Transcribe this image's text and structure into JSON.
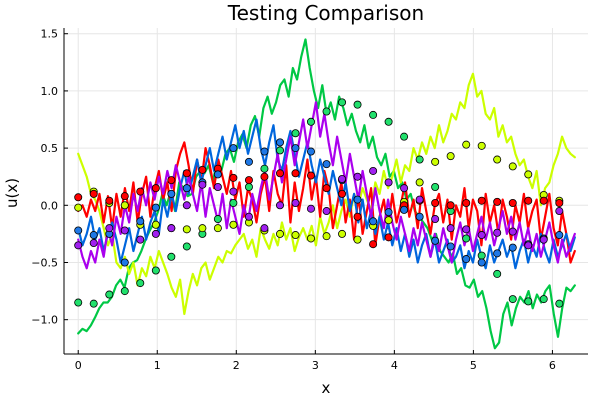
{
  "chart_data": {
    "type": "line",
    "title": "Testing Comparison",
    "xlabel": "x",
    "ylabel": "u(x)",
    "xlim": [
      -0.18,
      6.45
    ],
    "ylim": [
      -1.3,
      1.55
    ],
    "xticks": [
      0,
      1,
      2,
      3,
      4,
      5,
      6
    ],
    "xtick_labels": [
      "0",
      "1",
      "2",
      "3",
      "4",
      "5",
      "6"
    ],
    "yticks": [
      -1.0,
      -0.5,
      0.0,
      0.5,
      1.0,
      1.5
    ],
    "ytick_labels": [
      "−1.0",
      "−0.5",
      "0.0",
      "0.5",
      "1.0",
      "1.5"
    ],
    "grid": true,
    "legend": "none",
    "line_x_range": [
      0,
      6.2832
    ],
    "marker_x": [
      0.0,
      0.196,
      0.393,
      0.589,
      0.785,
      0.982,
      1.178,
      1.374,
      1.571,
      1.767,
      1.963,
      2.16,
      2.356,
      2.553,
      2.749,
      2.945,
      3.142,
      3.338,
      3.534,
      3.731,
      3.927,
      4.123,
      4.32,
      4.516,
      4.712,
      4.909,
      5.105,
      5.301,
      5.498,
      5.694,
      5.89,
      6.087
    ],
    "series": [
      {
        "name": "green",
        "color": "#00c845",
        "marker_color": "#21e06c",
        "line_values": [
          -1.12,
          -1.08,
          -1.1,
          -1.05,
          -0.98,
          -0.9,
          -0.85,
          -0.85,
          -0.8,
          -0.7,
          -0.65,
          -0.72,
          -0.55,
          -0.5,
          -0.48,
          -0.4,
          -0.3,
          -0.22,
          -0.15,
          -0.05,
          0.1,
          0.0,
          0.12,
          -0.05,
          0.2,
          0.15,
          0.08,
          0.1,
          0.25,
          0.3,
          0.28,
          0.35,
          0.2,
          0.4,
          0.3,
          0.45,
          0.5,
          0.38,
          0.55,
          0.62,
          0.5,
          0.7,
          0.78,
          0.6,
          0.85,
          0.95,
          0.8,
          0.9,
          1.05,
          1.1,
          0.95,
          1.2,
          1.1,
          1.3,
          1.45,
          1.2,
          1.0,
          0.85,
          1.05,
          0.8,
          0.9,
          0.75,
          0.95,
          0.85,
          0.7,
          0.8,
          0.65,
          0.55,
          0.7,
          0.5,
          0.6,
          0.42,
          0.35,
          0.45,
          0.25,
          0.3,
          0.15,
          0.2,
          0.05,
          0.1,
          -0.05,
          -0.1,
          -0.15,
          -0.2,
          -0.3,
          -0.25,
          -0.4,
          -0.45,
          -0.5,
          -0.42,
          -0.6,
          -0.55,
          -0.7,
          -0.72,
          -0.65,
          -0.8,
          -0.75,
          -0.9,
          -1.1,
          -1.25,
          -1.2,
          -0.95,
          -0.85,
          -1.05,
          -0.9,
          -0.8,
          -0.85,
          -0.75,
          -0.9,
          -0.78,
          -0.85,
          -0.75,
          -0.7,
          -0.95,
          -1.15,
          -0.9,
          -0.72,
          -0.75,
          -0.7
        ],
        "marker_values": [
          -0.85,
          -0.86,
          -0.78,
          -0.75,
          -0.68,
          -0.57,
          -0.45,
          -0.36,
          -0.25,
          -0.12,
          0.02,
          0.16,
          0.32,
          0.48,
          0.63,
          0.73,
          0.82,
          0.9,
          0.88,
          0.79,
          0.73,
          0.6,
          0.4,
          0.16,
          -0.05,
          -0.29,
          -0.44,
          -0.6,
          -0.82,
          -0.84,
          -0.82,
          -0.86
        ]
      },
      {
        "name": "yellow",
        "color": "#ccff00",
        "marker_color": "#ccff00",
        "line_values": [
          0.45,
          0.35,
          0.25,
          0.1,
          0.05,
          -0.05,
          -0.2,
          -0.35,
          -0.25,
          -0.5,
          -0.55,
          -0.45,
          -0.6,
          -0.5,
          -0.7,
          -0.55,
          -0.62,
          -0.45,
          -0.55,
          -0.4,
          -0.5,
          -0.6,
          -0.72,
          -0.8,
          -0.65,
          -0.95,
          -0.75,
          -0.6,
          -0.7,
          -0.55,
          -0.5,
          -0.65,
          -0.55,
          -0.45,
          -0.5,
          -0.4,
          -0.42,
          -0.35,
          -0.3,
          -0.25,
          -0.38,
          -0.3,
          -0.45,
          -0.2,
          -0.3,
          -0.38,
          -0.25,
          -0.35,
          -0.15,
          -0.3,
          -0.2,
          -0.4,
          -0.28,
          -0.2,
          -0.3,
          -0.18,
          -0.35,
          -0.1,
          -0.25,
          -0.15,
          0.0,
          -0.2,
          -0.05,
          0.05,
          -0.1,
          0.1,
          0.0,
          0.15,
          0.05,
          -0.05,
          0.2,
          0.1,
          0.3,
          0.15,
          0.25,
          0.4,
          0.2,
          0.35,
          0.3,
          0.5,
          0.4,
          0.55,
          0.45,
          0.6,
          0.5,
          0.7,
          0.55,
          0.65,
          0.8,
          0.75,
          0.9,
          0.85,
          1.05,
          1.15,
          0.95,
          1.0,
          0.8,
          0.75,
          0.85,
          0.6,
          0.7,
          0.55,
          0.6,
          0.45,
          0.35,
          0.4,
          0.25,
          0.15,
          0.3,
          0.0,
          0.15,
          0.2,
          0.35,
          0.45,
          0.6,
          0.5,
          0.45,
          0.42
        ],
        "marker_values": [
          -0.02,
          0.12,
          0.02,
          0.0,
          -0.17,
          -0.17,
          -0.2,
          -0.21,
          -0.2,
          -0.2,
          -0.17,
          -0.15,
          -0.22,
          -0.25,
          -0.26,
          -0.29,
          -0.27,
          -0.25,
          -0.3,
          -0.18,
          -0.13,
          0.03,
          0.2,
          0.38,
          0.43,
          0.53,
          0.52,
          0.4,
          0.34,
          0.27,
          0.09,
          0.04
        ]
      },
      {
        "name": "red",
        "color": "#ff0000",
        "marker_color": "#ff0000",
        "line_values": [
          -0.05,
          0.0,
          -0.1,
          0.05,
          -0.05,
          0.1,
          -0.15,
          0.08,
          -0.2,
          0.1,
          -0.1,
          0.15,
          -0.05,
          0.2,
          -0.15,
          0.1,
          0.25,
          -0.1,
          0.15,
          0.3,
          0.05,
          0.2,
          -0.05,
          0.3,
          0.45,
          0.55,
          0.35,
          0.1,
          0.4,
          0.2,
          0.5,
          0.35,
          0.15,
          0.4,
          0.25,
          0.1,
          0.3,
          0.05,
          0.2,
          -0.1,
          0.15,
          0.05,
          -0.15,
          0.1,
          0.25,
          -0.05,
          0.3,
          0.1,
          0.0,
          0.35,
          -0.15,
          0.2,
          -0.05,
          0.15,
          0.4,
          0.05,
          0.25,
          -0.1,
          0.3,
          0.15,
          -0.2,
          0.0,
          0.2,
          -0.15,
          0.05,
          -0.3,
          0.1,
          -0.25,
          -0.05,
          0.15,
          -0.35,
          -0.1,
          0.05,
          -0.2,
          0.1,
          -0.15,
          0.0,
          0.2,
          -0.1,
          0.05,
          -0.2,
          0.15,
          -0.05,
          -0.25,
          0.0,
          0.1,
          -0.15,
          0.05,
          -0.3,
          0.0,
          -0.1,
          0.15,
          -0.2,
          0.05,
          -0.05,
          -0.35,
          0.1,
          -0.15,
          0.0,
          -0.25,
          0.05,
          -0.1,
          -0.3,
          0.0,
          -0.15,
          0.1,
          -0.2,
          -0.05,
          0.05,
          -0.3,
          -0.1,
          0.1,
          -0.2,
          -0.35,
          -0.05,
          -0.25,
          -0.5,
          -0.4
        ],
        "marker_values": [
          0.07,
          0.1,
          0.04,
          0.08,
          0.12,
          0.15,
          0.22,
          0.28,
          0.31,
          0.32,
          0.24,
          0.22,
          0.25,
          0.28,
          0.28,
          0.26,
          0.15,
          0.1,
          -0.1,
          -0.34,
          -0.28,
          0.0,
          0.04,
          0.02,
          0.0,
          0.02,
          0.04,
          0.03,
          0.02,
          0.04,
          0.04,
          0.02
        ]
      },
      {
        "name": "blue",
        "color": "#0066dd",
        "marker_color": "#1f78e6",
        "line_values": [
          -0.2,
          -0.35,
          -0.25,
          -0.1,
          -0.3,
          -0.2,
          -0.4,
          -0.25,
          -0.15,
          -0.3,
          -0.5,
          -0.35,
          -0.2,
          -0.4,
          -0.25,
          -0.1,
          -0.3,
          -0.15,
          -0.05,
          -0.25,
          0.05,
          -0.1,
          0.1,
          -0.05,
          0.15,
          0.3,
          0.1,
          0.25,
          0.4,
          0.2,
          0.35,
          0.5,
          0.3,
          0.45,
          0.6,
          0.4,
          0.55,
          0.7,
          0.5,
          0.65,
          0.45,
          0.6,
          0.75,
          0.5,
          0.35,
          0.55,
          0.7,
          0.4,
          0.3,
          0.5,
          0.65,
          0.45,
          0.25,
          0.4,
          0.55,
          0.35,
          0.2,
          0.4,
          0.25,
          0.1,
          0.3,
          0.15,
          0.0,
          0.2,
          -0.05,
          0.1,
          -0.15,
          0.05,
          -0.2,
          -0.05,
          -0.25,
          -0.1,
          -0.3,
          -0.15,
          -0.35,
          -0.2,
          -0.4,
          -0.25,
          -0.45,
          -0.3,
          -0.5,
          -0.35,
          -0.25,
          -0.45,
          -0.3,
          -0.5,
          -0.4,
          -0.3,
          -0.5,
          -0.45,
          -0.35,
          -0.55,
          -0.4,
          -0.5,
          -0.3,
          -0.45,
          -0.55,
          -0.35,
          -0.5,
          -0.4,
          -0.3,
          -0.45,
          -0.35,
          -0.55,
          -0.4,
          -0.3,
          -0.5,
          -0.35,
          -0.45,
          -0.25,
          -0.4,
          -0.5,
          -0.3,
          -0.45,
          -0.35,
          -0.25,
          -0.4,
          -0.28
        ],
        "marker_values": [
          -0.22,
          -0.26,
          -0.25,
          -0.5,
          -0.14,
          -0.02,
          0.1,
          0.15,
          0.2,
          0.27,
          0.5,
          0.38,
          0.47,
          0.55,
          0.5,
          0.47,
          0.36,
          0.22,
          0.05,
          -0.14,
          -0.06,
          -0.04,
          -0.1,
          -0.31,
          -0.36,
          -0.47,
          -0.5,
          -0.42,
          -0.37,
          -0.34,
          -0.29,
          -0.26
        ]
      },
      {
        "name": "purple",
        "color": "#aa00ee",
        "marker_color": "#a020f0",
        "line_values": [
          -0.3,
          -0.45,
          -0.55,
          -0.4,
          -0.5,
          -0.3,
          -0.45,
          -0.2,
          -0.35,
          -0.1,
          -0.25,
          0.0,
          -0.15,
          0.1,
          -0.05,
          0.15,
          0.0,
          0.2,
          0.05,
          0.25,
          0.1,
          0.3,
          0.15,
          0.35,
          0.2,
          0.05,
          0.25,
          0.1,
          -0.05,
          0.2,
          -0.1,
          0.15,
          0.0,
          -0.15,
          0.1,
          -0.2,
          0.05,
          -0.1,
          -0.25,
          0.0,
          -0.15,
          0.1,
          -0.05,
          0.15,
          0.3,
          0.05,
          0.25,
          0.45,
          0.2,
          0.4,
          0.6,
          0.35,
          0.55,
          0.75,
          0.5,
          0.7,
          0.9,
          0.6,
          0.8,
          0.55,
          0.35,
          0.6,
          0.4,
          0.2,
          0.45,
          0.25,
          0.05,
          0.3,
          0.1,
          -0.1,
          0.15,
          -0.05,
          -0.2,
          0.05,
          -0.15,
          -0.3,
          -0.1,
          -0.25,
          -0.4,
          -0.2,
          -0.35,
          -0.15,
          -0.3,
          -0.45,
          -0.25,
          -0.4,
          -0.2,
          -0.35,
          -0.5,
          -0.3,
          -0.15,
          -0.35,
          -0.2,
          -0.4,
          -0.25,
          -0.1,
          -0.3,
          -0.15,
          -0.35,
          -0.2,
          -0.05,
          -0.25,
          -0.1,
          -0.3,
          -0.15,
          -0.35,
          -0.2,
          -0.4,
          -0.25,
          -0.45,
          -0.3,
          -0.15,
          -0.35,
          -0.5,
          -0.3,
          -0.45,
          -0.35,
          -0.25
        ],
        "marker_values": [
          -0.35,
          -0.33,
          -0.2,
          -0.22,
          -0.3,
          -0.25,
          -0.2,
          0.0,
          0.18,
          0.16,
          0.12,
          -0.1,
          -0.2,
          0.0,
          0.02,
          -0.03,
          -0.05,
          0.23,
          0.25,
          0.3,
          0.2,
          0.15,
          0.05,
          -0.12,
          -0.2,
          -0.21,
          -0.26,
          -0.24,
          -0.23,
          -0.35,
          -0.3,
          -0.05
        ]
      }
    ]
  }
}
